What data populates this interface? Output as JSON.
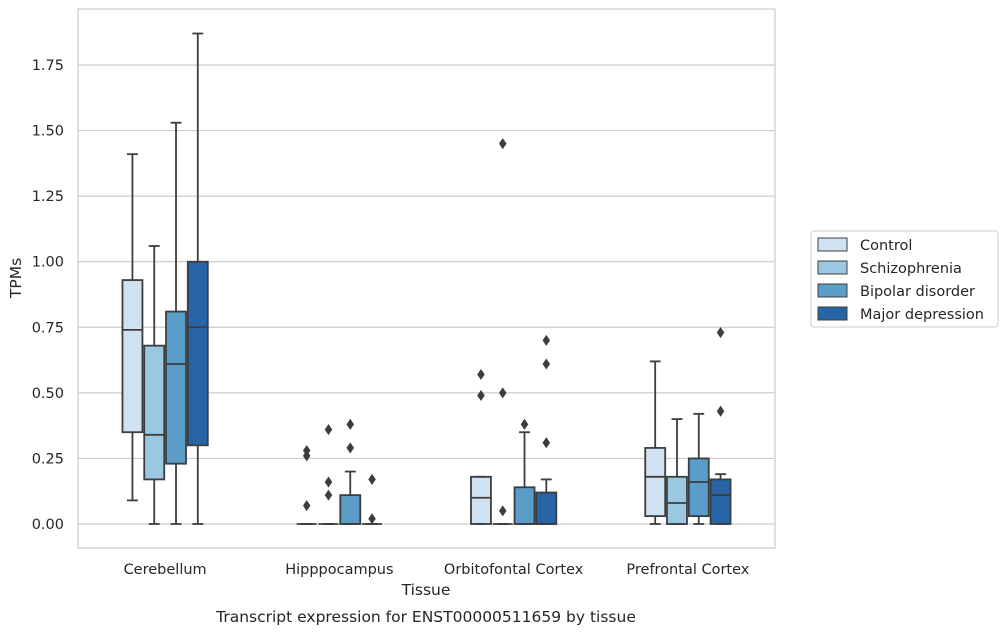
{
  "chart_data": {
    "type": "box",
    "xlabel": "Tissue",
    "ylabel": "TPMs",
    "caption": "Transcript expression for ENST00000511659 by tissue",
    "ylim": [
      -0.09,
      1.97
    ],
    "yticks": [
      "0.00",
      "0.25",
      "0.50",
      "0.75",
      "1.00",
      "1.25",
      "1.50",
      "1.75"
    ],
    "grid": "horizontal",
    "legend_position": "right",
    "categories": [
      "Cerebellum",
      "Hipppocampus",
      "Orbitofontal Cortex",
      "Prefrontal Cortex"
    ],
    "series": [
      {
        "name": "Control",
        "color": "#d0e1f2",
        "boxes": [
          {
            "whisker_low": 0.09,
            "q1": 0.35,
            "median": 0.74,
            "q3": 0.93,
            "whisker_high": 1.41,
            "outliers": []
          },
          {
            "whisker_low": 0.0,
            "q1": 0.0,
            "median": 0.0,
            "q3": 0.0,
            "whisker_high": 0.0,
            "outliers": [
              0.07,
              0.26,
              0.28
            ]
          },
          {
            "whisker_low": 0.0,
            "q1": 0.0,
            "median": 0.1,
            "q3": 0.18,
            "whisker_high": 0.18,
            "outliers": [
              0.49,
              0.57
            ]
          },
          {
            "whisker_low": 0.0,
            "q1": 0.03,
            "median": 0.18,
            "q3": 0.29,
            "whisker_high": 0.62,
            "outliers": []
          }
        ]
      },
      {
        "name": "Schizophrenia",
        "color": "#9ac8e0",
        "boxes": [
          {
            "whisker_low": 0.0,
            "q1": 0.17,
            "median": 0.34,
            "q3": 0.68,
            "whisker_high": 1.06,
            "outliers": []
          },
          {
            "whisker_low": 0.0,
            "q1": 0.0,
            "median": 0.0,
            "q3": 0.0,
            "whisker_high": 0.0,
            "outliers": [
              0.11,
              0.16,
              0.36
            ]
          },
          {
            "whisker_low": 0.0,
            "q1": 0.0,
            "median": 0.0,
            "q3": 0.0,
            "whisker_high": 0.0,
            "outliers": [
              0.05,
              0.5,
              1.45
            ]
          },
          {
            "whisker_low": 0.0,
            "q1": 0.0,
            "median": 0.08,
            "q3": 0.18,
            "whisker_high": 0.4,
            "outliers": []
          }
        ]
      },
      {
        "name": "Bipolar disorder",
        "color": "#5a9dc8",
        "boxes": [
          {
            "whisker_low": 0.0,
            "q1": 0.23,
            "median": 0.61,
            "q3": 0.81,
            "whisker_high": 1.53,
            "outliers": []
          },
          {
            "whisker_low": 0.0,
            "q1": 0.0,
            "median": 0.0,
            "q3": 0.11,
            "whisker_high": 0.2,
            "outliers": [
              0.29,
              0.38
            ]
          },
          {
            "whisker_low": 0.0,
            "q1": 0.0,
            "median": 0.0,
            "q3": 0.14,
            "whisker_high": 0.35,
            "outliers": [
              0.38
            ]
          },
          {
            "whisker_low": 0.0,
            "q1": 0.03,
            "median": 0.16,
            "q3": 0.25,
            "whisker_high": 0.42,
            "outliers": []
          }
        ]
      },
      {
        "name": "Major depression",
        "color": "#2765a6",
        "boxes": [
          {
            "whisker_low": 0.0,
            "q1": 0.3,
            "median": 0.75,
            "q3": 1.0,
            "whisker_high": 1.87,
            "outliers": []
          },
          {
            "whisker_low": 0.0,
            "q1": 0.0,
            "median": 0.0,
            "q3": 0.0,
            "whisker_high": 0.0,
            "outliers": [
              0.02,
              0.17
            ]
          },
          {
            "whisker_low": 0.0,
            "q1": 0.0,
            "median": 0.0,
            "q3": 0.12,
            "whisker_high": 0.17,
            "outliers": [
              0.31,
              0.61,
              0.7
            ]
          },
          {
            "whisker_low": 0.0,
            "q1": 0.0,
            "median": 0.11,
            "q3": 0.17,
            "whisker_high": 0.19,
            "outliers": [
              0.43,
              0.73
            ]
          }
        ]
      }
    ]
  }
}
